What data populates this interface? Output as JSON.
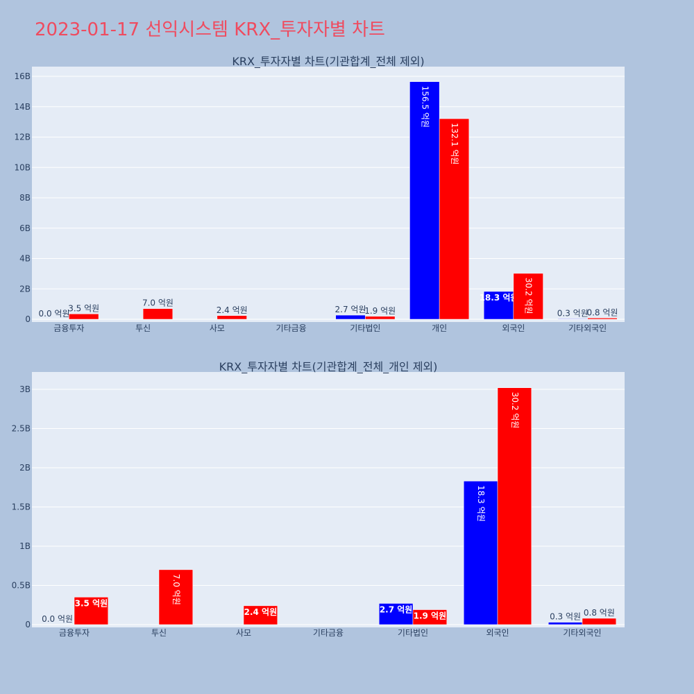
{
  "page": {
    "title": "2023-01-17 선익시스템 KRX_투자자별 차트"
  },
  "colors": {
    "buy": "#0000ff",
    "sell": "#ff0000",
    "plot_bg": "#e5ecf6",
    "paper_bg": "#b0c4de",
    "grid": "#ffffff",
    "text": "#2a3f5f"
  },
  "chart_data": [
    {
      "type": "bar",
      "title": "KRX_투자자별 차트(기관합계_전체 제외)",
      "categories": [
        "금융투자",
        "투신",
        "사모",
        "기타금융",
        "기타법인",
        "개인",
        "외국인",
        "기타외국인"
      ],
      "series": [
        {
          "values": [
            0.0,
            0,
            0,
            0,
            0.27,
            15.65,
            1.83,
            0.03
          ],
          "labels": [
            "0.0 억원",
            "",
            "",
            "",
            "2.7 억원",
            "156.5 억원",
            "18.3 억원",
            "0.3 억원"
          ]
        },
        {
          "values": [
            0.35,
            0.7,
            0.24,
            0,
            0.19,
            13.21,
            3.02,
            0.08
          ],
          "labels": [
            "3.5 억원",
            "7.0 억원",
            "2.4 억원",
            "",
            "1.9 억원",
            "132.1 억원",
            "30.2 억원",
            "0.8 억원"
          ]
        }
      ],
      "yticks": [
        "0",
        "2B",
        "4B",
        "6B",
        "8B",
        "10B",
        "12B",
        "14B",
        "16B"
      ],
      "ylim": [
        0,
        16.2
      ],
      "grid": true,
      "legend": "none"
    },
    {
      "type": "bar",
      "title": "KRX_투자자별 차트(기관합계_전체_개인 제외)",
      "categories": [
        "금융투자",
        "투신",
        "사모",
        "기타금융",
        "기타법인",
        "외국인",
        "기타외국인"
      ],
      "series": [
        {
          "values": [
            0.0,
            0,
            0,
            0,
            0.27,
            1.83,
            0.03
          ],
          "labels": [
            "0.0 억원",
            "",
            "",
            "",
            "2.7 억원",
            "18.3 억원",
            "0.3 억원"
          ]
        },
        {
          "values": [
            0.35,
            0.7,
            0.24,
            0,
            0.19,
            3.02,
            0.08
          ],
          "labels": [
            "3.5 억원",
            "7.0 억원",
            "2.4 억원",
            "",
            "1.9 억원",
            "30.2 억원",
            "0.8 억원"
          ]
        }
      ],
      "yticks": [
        "0",
        "0.5B",
        "1B",
        "1.5B",
        "2B",
        "2.5B",
        "3B"
      ],
      "ylim": [
        0,
        3.2
      ],
      "grid": true,
      "legend": "none"
    }
  ]
}
